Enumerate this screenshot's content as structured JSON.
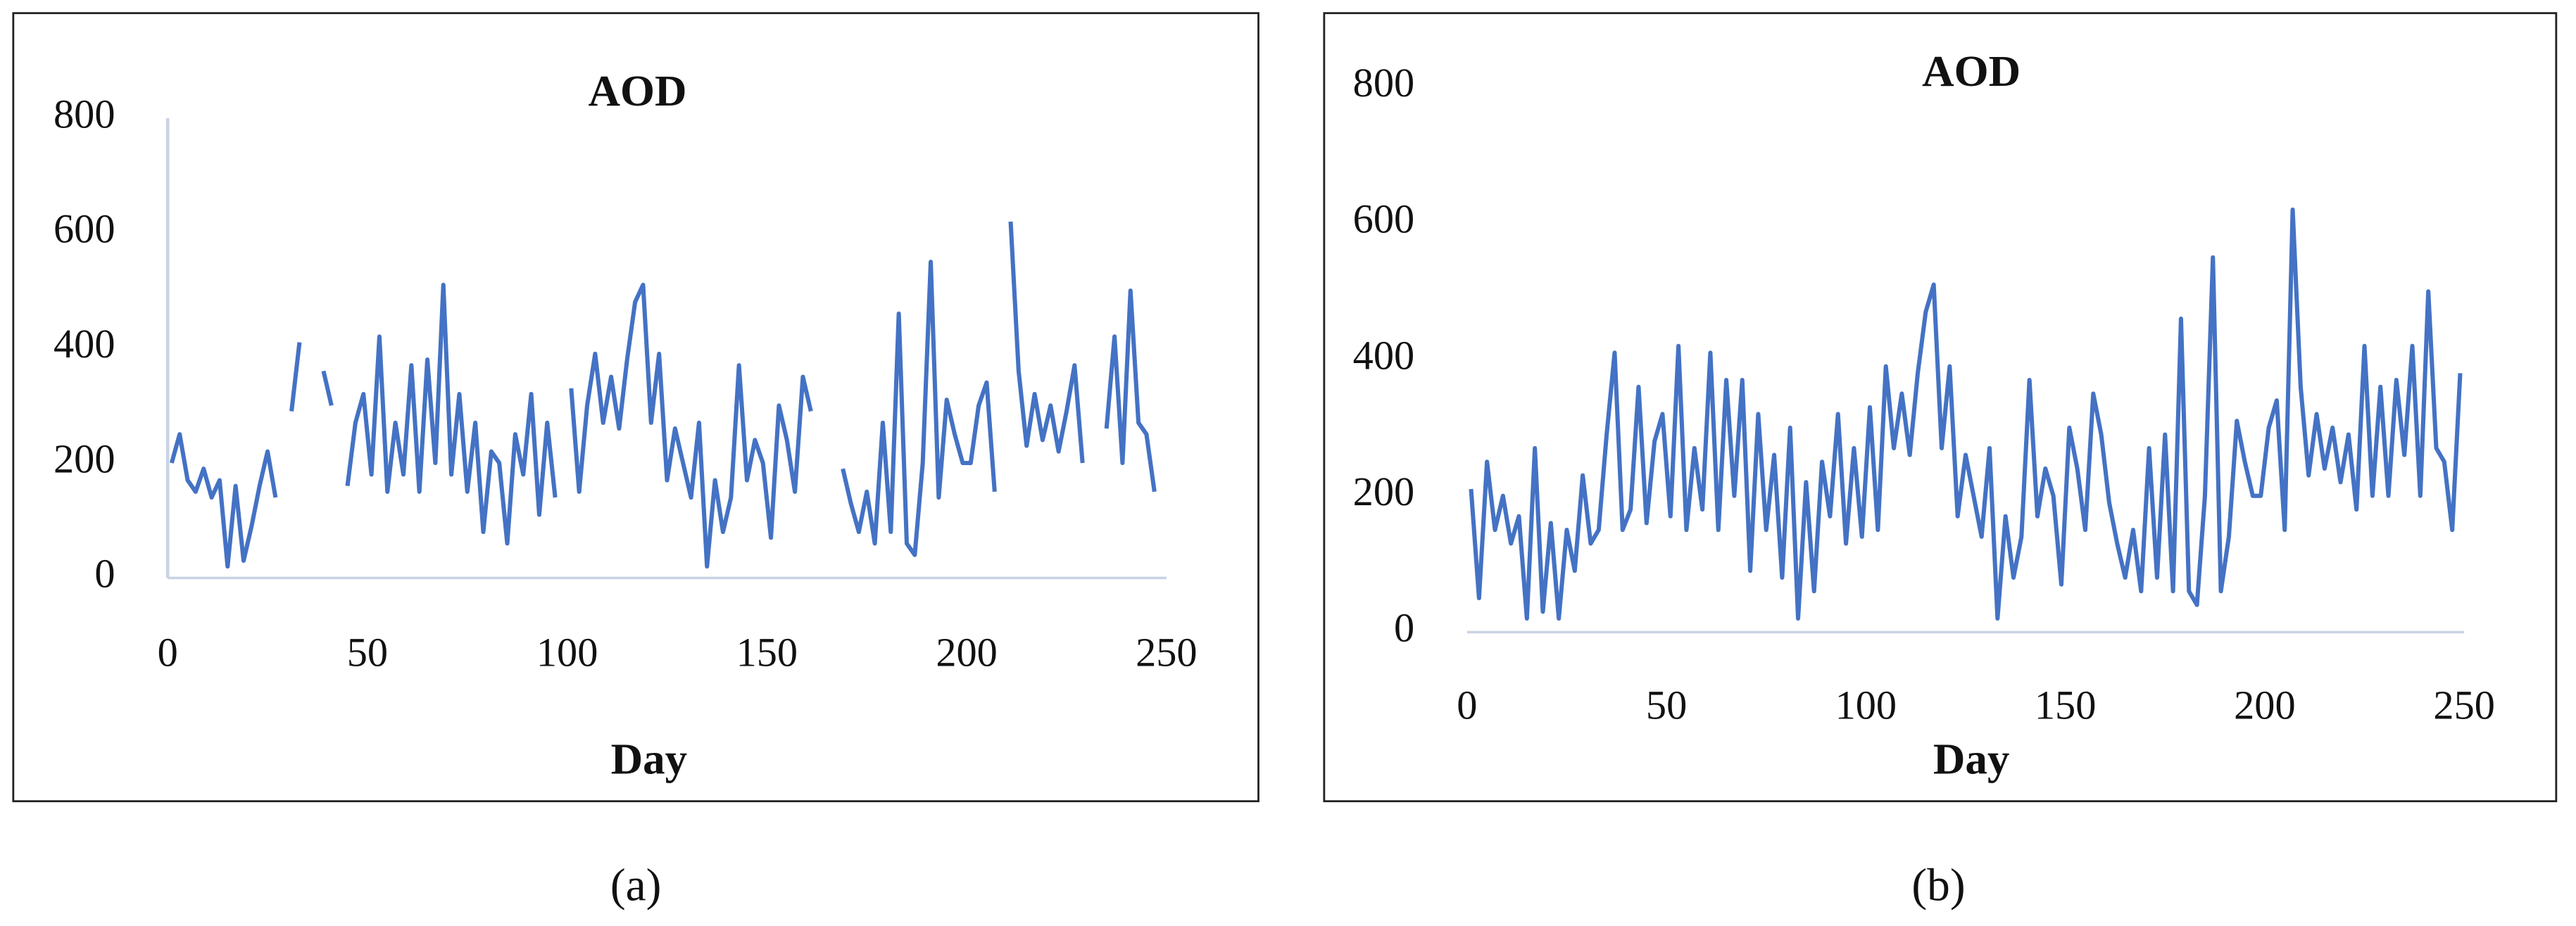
{
  "chart_data": [
    {
      "type": "line",
      "title": "AOD",
      "x_label": "Day",
      "xlim": [
        0,
        250
      ],
      "ylim": [
        0,
        800
      ],
      "xticks": [
        0,
        50,
        100,
        150,
        200,
        250
      ],
      "yticks": [
        0,
        200,
        400,
        600,
        800
      ],
      "series": [
        {
          "name": "AOD",
          "color": "#4472c4",
          "x": [
            1,
            3,
            5,
            7,
            9,
            11,
            13,
            15,
            17,
            19,
            21,
            23,
            25,
            27,
            29,
            31,
            33,
            35,
            37,
            39,
            41,
            43,
            45,
            47,
            49,
            51,
            53,
            55,
            57,
            59,
            61,
            63,
            65,
            67,
            69,
            71,
            73,
            75,
            77,
            79,
            81,
            83,
            85,
            87,
            89,
            91,
            93,
            95,
            97,
            99,
            101,
            103,
            105,
            107,
            109,
            111,
            113,
            115,
            117,
            119,
            121,
            123,
            125,
            127,
            129,
            131,
            133,
            135,
            137,
            139,
            141,
            143,
            145,
            147,
            149,
            151,
            153,
            155,
            157,
            159,
            161,
            163,
            165,
            167,
            169,
            171,
            173,
            175,
            177,
            179,
            181,
            183,
            185,
            187,
            189,
            191,
            193,
            195,
            197,
            199,
            201,
            203,
            205,
            207,
            209,
            211,
            213,
            215,
            217,
            219,
            221,
            223,
            225,
            227,
            229,
            231,
            233,
            235,
            237,
            239,
            241,
            243,
            245,
            247
          ],
          "values": [
            200,
            250,
            170,
            150,
            190,
            140,
            170,
            20,
            160,
            30,
            90,
            160,
            220,
            140,
            null,
            290,
            410,
            null,
            null,
            360,
            300,
            null,
            160,
            270,
            320,
            180,
            420,
            150,
            270,
            180,
            370,
            150,
            380,
            200,
            510,
            180,
            320,
            150,
            270,
            80,
            220,
            200,
            60,
            250,
            180,
            320,
            110,
            270,
            140,
            null,
            330,
            150,
            300,
            390,
            270,
            350,
            260,
            380,
            480,
            510,
            270,
            390,
            170,
            260,
            200,
            140,
            270,
            20,
            170,
            80,
            140,
            370,
            170,
            240,
            200,
            70,
            300,
            240,
            150,
            350,
            290,
            null,
            null,
            null,
            190,
            130,
            80,
            150,
            60,
            270,
            80,
            460,
            60,
            40,
            200,
            550,
            140,
            310,
            250,
            200,
            200,
            300,
            340,
            150,
            null,
            620,
            360,
            230,
            320,
            240,
            300,
            220,
            290,
            370,
            200,
            null,
            null,
            260,
            420,
            200,
            500,
            270,
            250,
            150
          ]
        }
      ]
    },
    {
      "type": "line",
      "title": "AOD",
      "x_label": "Day",
      "xlim": [
        0,
        250
      ],
      "ylim": [
        0,
        800
      ],
      "xticks": [
        0,
        50,
        100,
        150,
        200,
        250
      ],
      "yticks": [
        0,
        200,
        400,
        600,
        800
      ],
      "series": [
        {
          "name": "AOD",
          "color": "#4472c4",
          "x": [
            1,
            3,
            5,
            7,
            9,
            11,
            13,
            15,
            17,
            19,
            21,
            23,
            25,
            27,
            29,
            31,
            33,
            35,
            37,
            39,
            41,
            43,
            45,
            47,
            49,
            51,
            53,
            55,
            57,
            59,
            61,
            63,
            65,
            67,
            69,
            71,
            73,
            75,
            77,
            79,
            81,
            83,
            85,
            87,
            89,
            91,
            93,
            95,
            97,
            99,
            101,
            103,
            105,
            107,
            109,
            111,
            113,
            115,
            117,
            119,
            121,
            123,
            125,
            127,
            129,
            131,
            133,
            135,
            137,
            139,
            141,
            143,
            145,
            147,
            149,
            151,
            153,
            155,
            157,
            159,
            161,
            163,
            165,
            167,
            169,
            171,
            173,
            175,
            177,
            179,
            181,
            183,
            185,
            187,
            189,
            191,
            193,
            195,
            197,
            199,
            201,
            203,
            205,
            207,
            209,
            211,
            213,
            215,
            217,
            219,
            221,
            223,
            225,
            227,
            229,
            231,
            233,
            235,
            237,
            239,
            241,
            243,
            245,
            247,
            249
          ],
          "values": [
            210,
            50,
            250,
            150,
            200,
            130,
            170,
            20,
            270,
            30,
            160,
            20,
            150,
            90,
            230,
            130,
            150,
            290,
            410,
            150,
            180,
            360,
            160,
            280,
            320,
            170,
            420,
            150,
            270,
            180,
            410,
            150,
            370,
            200,
            370,
            90,
            320,
            150,
            260,
            80,
            300,
            20,
            220,
            60,
            250,
            170,
            320,
            130,
            270,
            140,
            330,
            150,
            390,
            270,
            350,
            260,
            380,
            470,
            510,
            270,
            390,
            170,
            260,
            200,
            140,
            270,
            20,
            170,
            80,
            140,
            370,
            170,
            240,
            200,
            70,
            300,
            240,
            150,
            350,
            290,
            190,
            130,
            80,
            150,
            60,
            270,
            80,
            290,
            60,
            460,
            60,
            40,
            200,
            550,
            60,
            140,
            310,
            250,
            200,
            200,
            300,
            340,
            150,
            620,
            360,
            230,
            320,
            240,
            300,
            220,
            290,
            180,
            420,
            200,
            360,
            200,
            370,
            260,
            420,
            200,
            500,
            270,
            250,
            150,
            380
          ]
        }
      ]
    }
  ],
  "captions": [
    "(a)",
    "(b)"
  ]
}
